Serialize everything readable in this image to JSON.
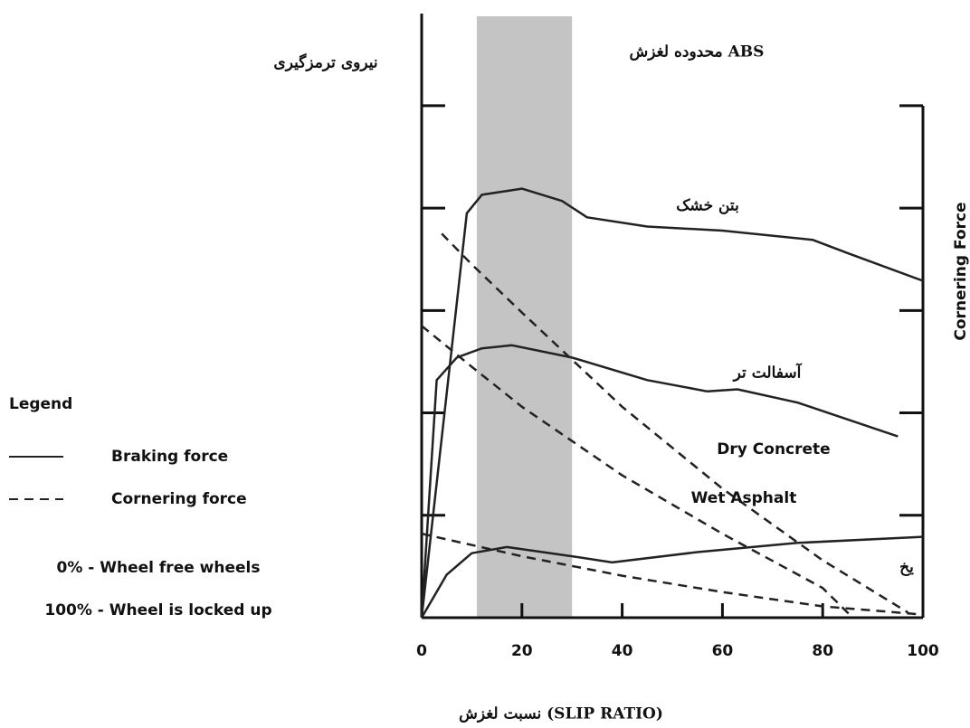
{
  "chart_data": {
    "type": "line",
    "y_label": "نیروی ترمزگیری",
    "y2_label": "Cornering Force",
    "x_label": "نسبت لغزش (SLIP RATIO)",
    "xlim": [
      0,
      100
    ],
    "xticks": [
      0,
      20,
      40,
      60,
      80,
      100
    ],
    "ylim": [
      0,
      5.9
    ],
    "yticks": [
      1,
      2,
      3,
      4,
      5
    ],
    "shaded_band": {
      "x": [
        11,
        30
      ],
      "color": "#c4c4c4",
      "label": "محدوده لغزش ABS"
    },
    "color": "#222222",
    "legend": {
      "title": "Legend",
      "entries": [
        {
          "label": "Braking force",
          "style": "solid"
        },
        {
          "label": "Cornering force",
          "style": "dashed"
        }
      ],
      "notes": [
        "0% - Wheel free wheels",
        "100% - Wheel is locked up"
      ]
    },
    "annotations": [
      "بتن خشک",
      "آسفالت تر",
      "یخ",
      "Dry Concrete",
      "Wet Asphalt"
    ],
    "series": [
      {
        "style": "solid",
        "x": [
          0,
          9,
          12,
          20,
          28,
          33,
          45,
          60,
          78,
          85,
          100
        ],
        "values": [
          0,
          3.95,
          4.13,
          4.19,
          4.07,
          3.91,
          3.82,
          3.78,
          3.69,
          3.56,
          3.29
        ]
      },
      {
        "style": "solid",
        "x": [
          0,
          3,
          7,
          12,
          18,
          30,
          45,
          57,
          63,
          75,
          95
        ],
        "values": [
          0,
          2.32,
          2.54,
          2.63,
          2.66,
          2.54,
          2.32,
          2.21,
          2.23,
          2.1,
          1.77
        ]
      },
      {
        "style": "solid",
        "x": [
          0,
          5,
          10,
          17,
          30,
          38,
          55,
          75,
          100
        ],
        "values": [
          0,
          0.42,
          0.63,
          0.69,
          0.6,
          0.54,
          0.64,
          0.73,
          0.79
        ]
      },
      {
        "style": "dashed",
        "x": [
          4,
          10,
          20,
          40,
          60,
          80,
          97
        ],
        "values": [
          3.75,
          3.45,
          2.98,
          2.06,
          1.26,
          0.56,
          0.05
        ]
      },
      {
        "style": "dashed",
        "x": [
          0,
          10,
          20,
          40,
          60,
          80,
          86
        ],
        "values": [
          2.85,
          2.45,
          2.06,
          1.39,
          0.82,
          0.29,
          0
        ]
      },
      {
        "style": "dashed",
        "x": [
          0,
          20,
          40,
          60,
          80,
          100
        ],
        "values": [
          0.82,
          0.6,
          0.41,
          0.25,
          0.11,
          0.03
        ]
      }
    ]
  }
}
